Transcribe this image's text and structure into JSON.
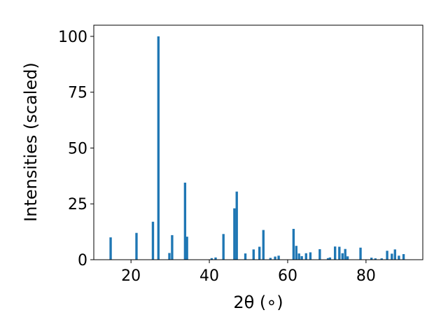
{
  "chart_data": {
    "type": "bar",
    "title": "",
    "xlabel": "2θ (∘)",
    "ylabel": "Intensities (scaled)",
    "xlim": [
      10.5,
      94.5
    ],
    "ylim": [
      0,
      105
    ],
    "xticks": [
      20,
      40,
      60,
      80
    ],
    "yticks": [
      0,
      25,
      50,
      75,
      100
    ],
    "xtick_labels": [
      "20",
      "40",
      "60",
      "80"
    ],
    "ytick_labels": [
      "0",
      "25",
      "50",
      "75",
      "100"
    ],
    "bar_width": 0.6,
    "grid": false,
    "legend": "none",
    "colors": {
      "bar": "#1f77b4",
      "axes": "#000000",
      "background": "#ffffff"
    },
    "x": [
      14.8,
      21.4,
      25.6,
      27.0,
      29.8,
      30.5,
      33.8,
      34.3,
      40.6,
      41.6,
      43.6,
      46.4,
      47.0,
      49.2,
      51.3,
      52.8,
      53.8,
      55.6,
      56.8,
      57.7,
      61.5,
      62.2,
      62.9,
      63.6,
      64.7,
      65.8,
      68.2,
      70.3,
      70.8,
      72.1,
      73.2,
      74.0,
      74.7,
      75.3,
      78.6,
      81.4,
      82.4,
      84.0,
      85.4,
      86.6,
      87.4,
      88.4,
      89.6
    ],
    "values": [
      10,
      12,
      17,
      100,
      3,
      11,
      34.5,
      10.3,
      0.7,
      1,
      11.5,
      23,
      30.5,
      2.8,
      4.6,
      5.8,
      13.3,
      0.8,
      1.4,
      1.8,
      13.8,
      6.2,
      2.8,
      1.6,
      2.9,
      3.3,
      4.7,
      0.7,
      1,
      5.9,
      5.8,
      2.9,
      4.8,
      1.5,
      5.4,
      0.9,
      0.6,
      0.6,
      4,
      2.7,
      4.6,
      1.8,
      2.5
    ]
  }
}
